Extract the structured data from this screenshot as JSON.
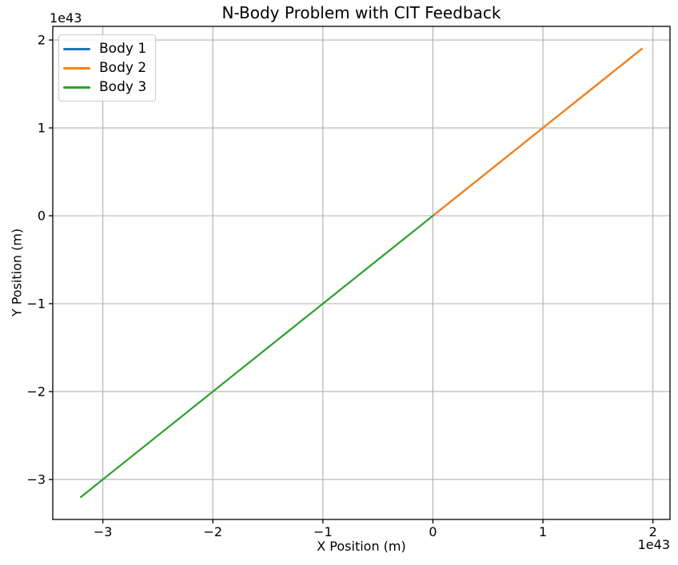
{
  "chart_data": {
    "type": "line",
    "title": "N-Body Problem with CIT Feedback",
    "xlabel": "X Position (m)",
    "ylabel": "Y Position (m)",
    "x_offset_text": "1e43",
    "y_offset_text": "1e43",
    "unit_scale": "1e43",
    "xlim": [
      -3.455,
      2.155
    ],
    "ylim": [
      -3.455,
      2.155
    ],
    "xticks": {
      "values": [
        -3,
        -2,
        -1,
        0,
        1,
        2
      ],
      "labels": [
        "−3",
        "−2",
        "−1",
        "0",
        "1",
        "2"
      ]
    },
    "yticks": {
      "values": [
        -3,
        -2,
        -1,
        0,
        1,
        2
      ],
      "labels": [
        "−3",
        "−2",
        "−1",
        "0",
        "1",
        "2"
      ]
    },
    "grid": true,
    "grid_color": "#b0b0b0",
    "spine_color": "#000000",
    "legend_position": "upper left",
    "series": [
      {
        "name": "Body 1",
        "color": "#1f77b4",
        "points": [
          [
            0,
            0
          ],
          [
            1.9,
            1.9
          ]
        ],
        "visibility": "occluded by Body 2"
      },
      {
        "name": "Body 2",
        "color": "#ff7f0e",
        "points": [
          [
            0,
            0
          ],
          [
            1.9,
            1.9
          ]
        ]
      },
      {
        "name": "Body 3",
        "color": "#2ca02c",
        "points": [
          [
            0,
            0
          ],
          [
            -3.2,
            -3.2
          ]
        ]
      }
    ]
  }
}
